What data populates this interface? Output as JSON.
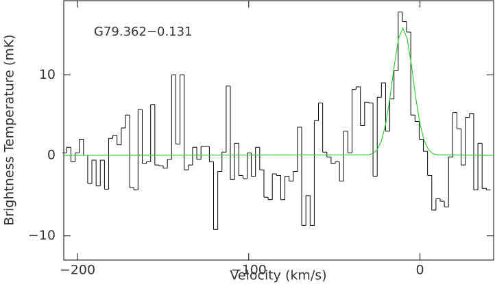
{
  "chart_data": {
    "type": "step",
    "annotation": "G79.362−0.131",
    "xlabel": "Velocity (km/s)",
    "ylabel": "Brightness Temperature (mK)",
    "xlim": [
      -208,
      43
    ],
    "ylim": [
      -13,
      19.2
    ],
    "xticks": [
      {
        "value": -200,
        "label": "−200"
      },
      {
        "value": -100,
        "label": "−100"
      },
      0
    ],
    "yticks": [
      {
        "value": -10,
        "label": "−10"
      },
      0,
      10
    ],
    "series": [
      {
        "color": "#000000",
        "step": true,
        "x": [
          -207.5,
          -205.05,
          -202.6,
          -200.15,
          -197.7,
          -195.25,
          -192.8,
          -190.35,
          -187.9,
          -185.45,
          -183,
          -180.55,
          -178.1,
          -175.65,
          -173.2,
          -170.75,
          -168.3,
          -165.85,
          -163.4,
          -160.95,
          -158.5,
          -156.05,
          -153.6,
          -151.15,
          -148.7,
          -146.25,
          -143.8,
          -141.35,
          -138.9,
          -136.45,
          -134,
          -131.55,
          -129.1,
          -126.65,
          -124.2,
          -121.75,
          -119.3,
          -116.85,
          -114.4,
          -111.95,
          -109.5,
          -107.05,
          -104.6,
          -102.15,
          -99.7,
          -97.25,
          -94.8,
          -92.35,
          -89.9,
          -87.45,
          -85,
          -82.55,
          -80.1,
          -77.65,
          -75.2,
          -72.75,
          -70.3,
          -67.85,
          -65.4,
          -62.95,
          -60.5,
          -58.05,
          -55.6,
          -53.15,
          -50.7,
          -48.25,
          -45.8,
          -43.35,
          -40.9,
          -38.45,
          -36,
          -33.55,
          -31.1,
          -28.65,
          -26.2,
          -23.75,
          -21.3,
          -18.85,
          -16.4,
          -13.95,
          -11.5,
          -9.05,
          -6.6,
          -4.15,
          -1.7,
          0.75,
          3.2,
          5.65,
          8.1,
          10.55,
          13,
          15.45,
          17.9,
          20.35,
          22.8,
          25.25,
          27.7,
          30.15,
          32.6,
          35.05,
          37.5,
          39.95
        ],
        "values": [
          0.3,
          1,
          -0.8,
          0.3,
          2,
          0,
          -3.5,
          -0.6,
          -3.8,
          -0.6,
          -4.2,
          2.1,
          2.5,
          1.3,
          3.4,
          5,
          -4,
          -4.3,
          5.7,
          -1,
          -0.8,
          6.3,
          -1.2,
          -1.3,
          -1.6,
          -0.5,
          10,
          1.4,
          10,
          -1.8,
          -1.2,
          1,
          -0.5,
          1.1,
          1.1,
          -0.8,
          -9.2,
          -2,
          0.4,
          8.6,
          -3,
          1.5,
          -2.5,
          -2.9,
          0.3,
          -2.6,
          1,
          -1.8,
          -5.2,
          -5.5,
          -2.3,
          -2.5,
          -5.5,
          -2.6,
          -3.2,
          -2,
          3.5,
          -8.7,
          -5,
          -8.7,
          4.3,
          6.5,
          0.4,
          -0.2,
          -1,
          -0.8,
          -3.2,
          3,
          0.3,
          8.2,
          8.5,
          3.7,
          6.6,
          6.5,
          -2.6,
          7.2,
          9,
          3,
          7,
          10.5,
          17.8,
          16.6,
          15.3,
          5,
          4.2,
          2,
          0.5,
          -2.5,
          -6.8,
          -5.4,
          -5.7,
          -6.4,
          -0.2,
          5.3,
          3.3,
          -1.2,
          4.7,
          5.2,
          -4.3,
          1.5,
          -4.1,
          -4.3
        ]
      },
      {
        "color": "#33cc33",
        "step": false,
        "x": [
          -208,
          -30,
          -27.5,
          -25,
          -22.5,
          -20,
          -17.5,
          -15,
          -12.5,
          -10,
          -7.5,
          -5,
          -2.5,
          0,
          2.5,
          5,
          7.5,
          10,
          43
        ],
        "values": [
          0,
          0.06,
          0.22,
          0.7,
          1.8,
          3.9,
          7.2,
          11.2,
          14.5,
          15.8,
          14.5,
          11.2,
          7.2,
          3.9,
          1.8,
          0.7,
          0.22,
          0.06,
          0
        ]
      }
    ]
  }
}
